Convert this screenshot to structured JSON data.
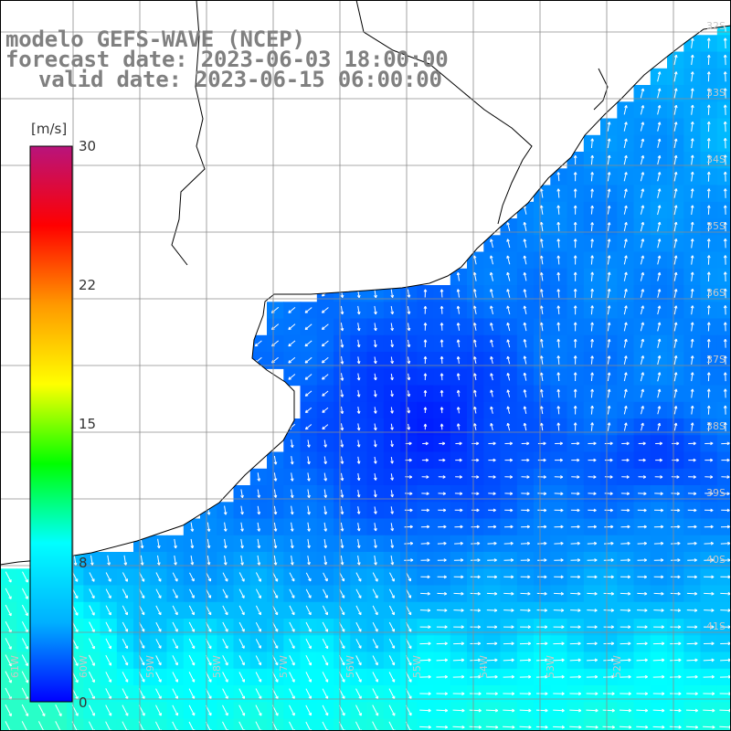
{
  "title": {
    "line1": "modelo GEFS-WAVE (NCEP)",
    "line2": "forecast date: 2023-06-03 18:00:00",
    "line3": "valid date: 2023-06-15 06:00:00"
  },
  "colorbar": {
    "unit": "[m/s]",
    "ticks": [
      "30",
      "22",
      "15",
      "8",
      "0"
    ],
    "tick_values": [
      30,
      22,
      15,
      8,
      0
    ],
    "vmin": 0,
    "vmax": 30,
    "colors": [
      "#0000ff",
      "#00b0ff",
      "#00ffff",
      "#00ff00",
      "#ffff00",
      "#ff9900",
      "#ff0000",
      "#b8147c"
    ]
  },
  "lat_labels": [
    "32S",
    "33S",
    "34S",
    "35S",
    "36S",
    "37S",
    "38S",
    "39S",
    "40S",
    "41S"
  ],
  "lat_values": [
    -32,
    -33,
    -34,
    -35,
    -36,
    -37,
    -38,
    -39,
    -40,
    -41
  ],
  "lon_labels": [
    "61W",
    "60W",
    "59W",
    "58W",
    "57W",
    "56W",
    "55W",
    "54W",
    "53W",
    "52W"
  ],
  "lon_values": [
    -61,
    -60,
    -59,
    -58,
    -57,
    -56,
    -55,
    -54,
    -53,
    -52
  ],
  "colors": {
    "land": "#ffffff",
    "coastline": "#000000",
    "grid": "#8c8c8c",
    "arrows": "#ffffff",
    "title_text": "#808080"
  }
}
